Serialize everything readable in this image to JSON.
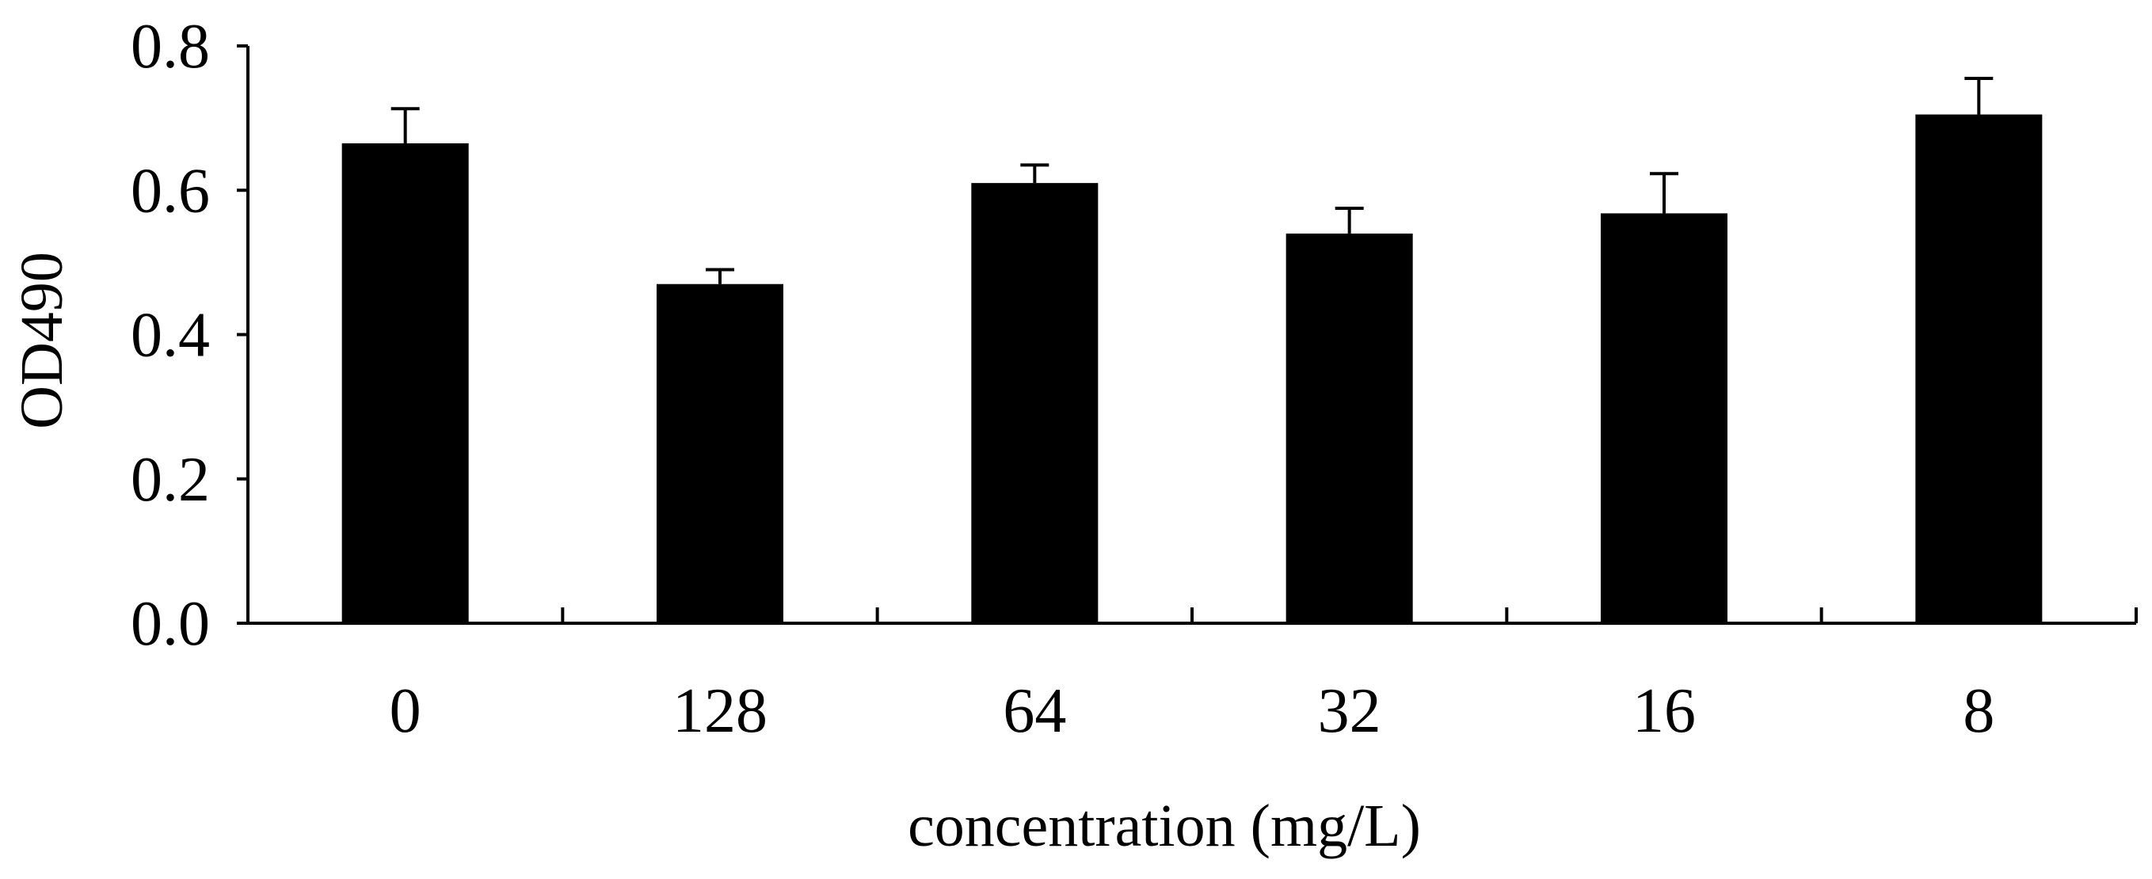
{
  "chart_data": {
    "type": "bar",
    "categories": [
      "0",
      "128",
      "64",
      "32",
      "16",
      "8"
    ],
    "values": [
      0.665,
      0.47,
      0.61,
      0.54,
      0.568,
      0.705
    ],
    "error": [
      0.048,
      0.02,
      0.025,
      0.035,
      0.055,
      0.05
    ],
    "xlabel": "concentration (mg/L)",
    "ylabel": "OD490",
    "ylim": [
      0,
      0.8
    ],
    "yticks": [
      "0.0",
      "0.2",
      "0.4",
      "0.6",
      "0.8"
    ],
    "grid": false,
    "legend": "none",
    "colors": {
      "bar": "#000000",
      "axis": "#000000",
      "tick_label_color": "#000000",
      "ylabel_color": "#c0703a"
    }
  }
}
